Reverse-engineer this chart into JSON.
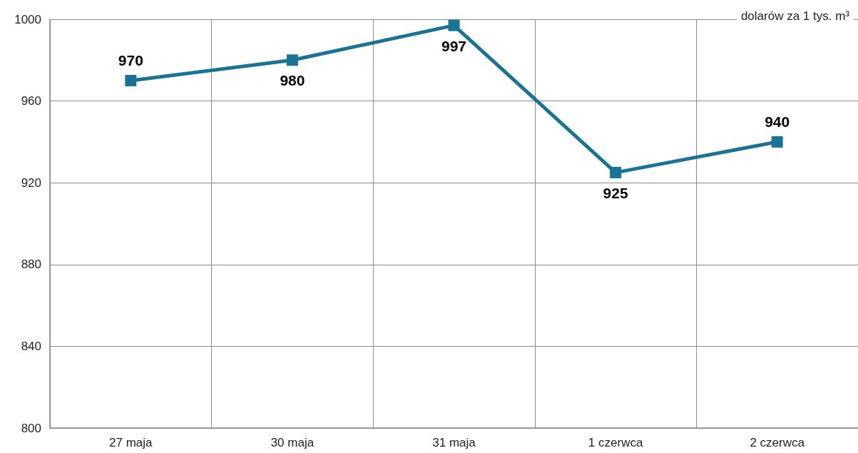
{
  "chart_data": {
    "type": "line",
    "ylabel": "dolarów za 1 tys. m³",
    "categories": [
      "27 maja",
      "30 maja",
      "31 maja",
      "1 czerwca",
      "2 czerwca"
    ],
    "series": [
      {
        "color": "#1a7394",
        "values": [
          970,
          980,
          997,
          925,
          940
        ]
      }
    ],
    "ylim": [
      800,
      1000
    ],
    "yticks": [
      800,
      840,
      880,
      920,
      960,
      1000
    ],
    "grid": true,
    "marker": "square",
    "line_style": "solid",
    "data_labels": true
  }
}
